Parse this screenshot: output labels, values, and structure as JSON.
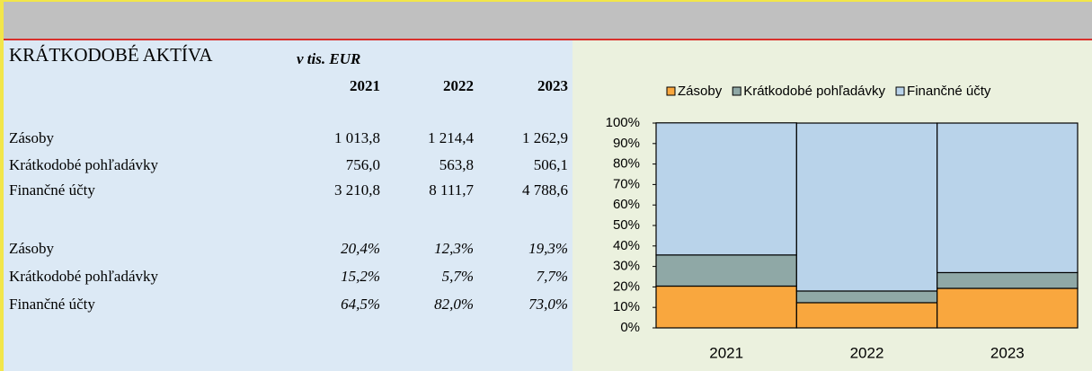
{
  "table": {
    "title": "KRÁTKODOBÉ AKTÍVA",
    "unit": "v tis. EUR",
    "columns": [
      "2021",
      "2022",
      "2023"
    ],
    "rows": [
      [
        "Zásoby",
        "1 013,8",
        "1 214,4",
        "1 262,9"
      ],
      [
        "Krátkodobé pohľadávky",
        "756,0",
        "563,8",
        "506,1"
      ],
      [
        "Finančné účty",
        "3 210,8",
        "8 111,7",
        "4 788,6"
      ]
    ],
    "share_rows": [
      [
        "Zásoby",
        "20,4%",
        "12,3%",
        "19,3%"
      ],
      [
        "Krátkodobé pohľadávky",
        "15,2%",
        "5,7%",
        "7,7%"
      ],
      [
        "Finančné účty",
        "64,5%",
        "82,0%",
        "73,0%"
      ]
    ]
  },
  "chart_data": {
    "type": "stacked_bar",
    "categories": [
      "2021",
      "2022",
      "2023"
    ],
    "series": [
      {
        "name": "Zásoby",
        "color": "#f9a73e",
        "values": [
          20.4,
          12.3,
          19.3
        ]
      },
      {
        "name": "Krátkodobé pohľadávky",
        "color": "#8fa8a6",
        "values": [
          15.2,
          5.7,
          7.7
        ]
      },
      {
        "name": "Finančné účty",
        "color": "#b9d3ea",
        "values": [
          64.5,
          82.0,
          73.0
        ]
      }
    ],
    "ylim": [
      0,
      100
    ],
    "yticks": [
      {
        "value": 0,
        "label": "0%"
      },
      {
        "value": 10,
        "label": "10%"
      },
      {
        "value": 20,
        "label": "20%"
      },
      {
        "value": 30,
        "label": "30%"
      },
      {
        "value": 40,
        "label": "40%"
      },
      {
        "value": 50,
        "label": "50%"
      },
      {
        "value": 60,
        "label": "60%"
      },
      {
        "value": 70,
        "label": "70%"
      },
      {
        "value": 80,
        "label": "80%"
      },
      {
        "value": 90,
        "label": "90%"
      },
      {
        "value": 100,
        "label": "100%"
      }
    ],
    "legend": "top"
  }
}
